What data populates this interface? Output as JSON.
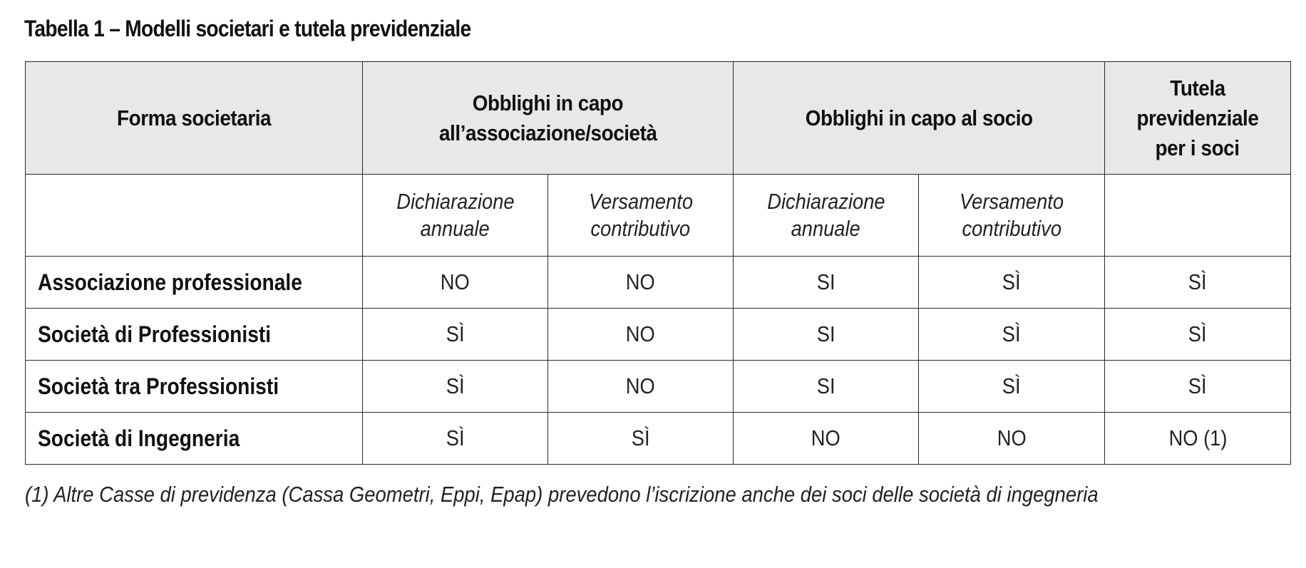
{
  "title": "Tabella 1 – Modelli societari e tutela previdenziale",
  "header": {
    "col_forma": "Forma societaria",
    "group_associazione": [
      "Obblighi in capo",
      "all’associazione/società"
    ],
    "group_socio": "Obblighi in capo al socio",
    "col_tutela": [
      "Tutela",
      "previdenziale",
      "per i soci"
    ]
  },
  "subheader": {
    "dichiarazione": [
      "Dichiarazione",
      "annuale"
    ],
    "versamento": [
      "Versamento",
      "contributivo"
    ]
  },
  "rows": [
    {
      "label": "Associazione professionale",
      "values": [
        "NO",
        "NO",
        "SI",
        "SÌ",
        "SÌ"
      ]
    },
    {
      "label": "Società di Professionisti",
      "values": [
        "SÌ",
        "NO",
        "SI",
        "SÌ",
        "SÌ"
      ]
    },
    {
      "label": "Società tra Professionisti",
      "values": [
        "SÌ",
        "NO",
        "SI",
        "SÌ",
        "SÌ"
      ]
    },
    {
      "label": "Società di Ingegneria",
      "values": [
        "SÌ",
        "SÌ",
        "NO",
        "NO",
        "NO (1)"
      ]
    }
  ],
  "footnote": "(1) Altre Casse di previdenza (Cassa Geometri, Eppi, Epap) prevedono l’iscrizione anche dei soci delle società di ingegneria"
}
